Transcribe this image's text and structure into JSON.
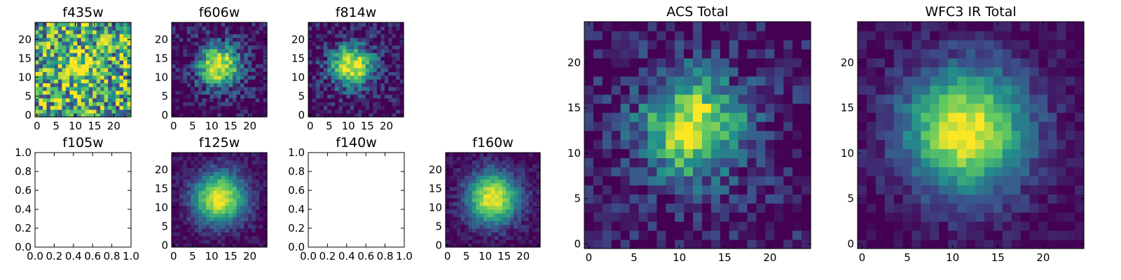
{
  "chart_data": [
    {
      "type": "heatmap",
      "title": "f435w",
      "colormap": "viridis",
      "grid": false,
      "xlim": [
        -0.5,
        24.5
      ],
      "ylim": [
        -0.5,
        24.5
      ],
      "xticks": [
        0,
        5,
        10,
        15,
        20
      ],
      "yticks": [
        0,
        5,
        10,
        15,
        20
      ],
      "xtick_labels": [
        "0",
        "5",
        "10",
        "15",
        "20"
      ],
      "ytick_labels": [
        "0",
        "5",
        "10",
        "15",
        "20"
      ],
      "image_size": [
        25,
        25
      ],
      "peak_center": [
        11,
        13
      ],
      "noise": "high",
      "empty": false
    },
    {
      "type": "heatmap",
      "title": "f606w",
      "colormap": "viridis",
      "grid": false,
      "xlim": [
        -0.5,
        24.5
      ],
      "ylim": [
        -0.5,
        24.5
      ],
      "xticks": [
        0,
        5,
        10,
        15,
        20
      ],
      "yticks": [
        0,
        5,
        10,
        15,
        20
      ],
      "xtick_labels": [
        "0",
        "5",
        "10",
        "15",
        "20"
      ],
      "ytick_labels": [
        "0",
        "5",
        "10",
        "15",
        "20"
      ],
      "image_size": [
        25,
        25
      ],
      "peak_center": [
        12,
        13
      ],
      "noise": "medium",
      "empty": false
    },
    {
      "type": "heatmap",
      "title": "f814w",
      "colormap": "viridis",
      "grid": false,
      "xlim": [
        -0.5,
        24.5
      ],
      "ylim": [
        -0.5,
        24.5
      ],
      "xticks": [
        0,
        5,
        10,
        15,
        20
      ],
      "yticks": [
        0,
        5,
        10,
        15,
        20
      ],
      "xtick_labels": [
        "0",
        "5",
        "10",
        "15",
        "20"
      ],
      "ytick_labels": [
        "0",
        "5",
        "10",
        "15",
        "20"
      ],
      "image_size": [
        25,
        25
      ],
      "peak_center": [
        11,
        13
      ],
      "noise": "medium",
      "empty": false
    },
    {
      "type": "heatmap",
      "title": "f105w",
      "grid": false,
      "xlim": [
        0,
        1
      ],
      "ylim": [
        0,
        1
      ],
      "xticks": [
        0,
        0.2,
        0.4,
        0.6,
        0.8,
        1.0
      ],
      "yticks": [
        0,
        0.2,
        0.4,
        0.6,
        0.8,
        1.0
      ],
      "xtick_labels": [
        "0.0",
        "0.2",
        "0.4",
        "0.6",
        "0.8",
        "1.0"
      ],
      "ytick_labels": [
        "0.0",
        "0.2",
        "0.4",
        "0.6",
        "0.8",
        "1.0"
      ],
      "empty": true
    },
    {
      "type": "heatmap",
      "title": "f125w",
      "colormap": "viridis",
      "grid": false,
      "xlim": [
        -0.5,
        24.5
      ],
      "ylim": [
        -0.5,
        24.5
      ],
      "xticks": [
        0,
        5,
        10,
        15,
        20
      ],
      "yticks": [
        0,
        5,
        10,
        15,
        20
      ],
      "xtick_labels": [
        "0",
        "5",
        "10",
        "15",
        "20"
      ],
      "ytick_labels": [
        "0",
        "5",
        "10",
        "15",
        "20"
      ],
      "image_size": [
        25,
        25
      ],
      "peak_center": [
        12,
        12.5
      ],
      "noise": "low",
      "empty": false
    },
    {
      "type": "heatmap",
      "title": "f140w",
      "grid": false,
      "xlim": [
        0,
        1
      ],
      "ylim": [
        0,
        1
      ],
      "xticks": [
        0,
        0.2,
        0.4,
        0.6,
        0.8,
        1.0
      ],
      "yticks": [
        0,
        0.2,
        0.4,
        0.6,
        0.8,
        1.0
      ],
      "xtick_labels": [
        "0.0",
        "0.2",
        "0.4",
        "0.6",
        "0.8",
        "1.0"
      ],
      "ytick_labels": [
        "0.0",
        "0.2",
        "0.4",
        "0.6",
        "0.8",
        "1.0"
      ],
      "empty": true
    },
    {
      "type": "heatmap",
      "title": "f160w",
      "colormap": "viridis",
      "grid": false,
      "xlim": [
        -0.5,
        24.5
      ],
      "ylim": [
        -0.5,
        24.5
      ],
      "xticks": [
        0,
        5,
        10,
        15,
        20
      ],
      "yticks": [
        0,
        5,
        10,
        15,
        20
      ],
      "xtick_labels": [
        "0",
        "5",
        "10",
        "15",
        "20"
      ],
      "ytick_labels": [
        "0",
        "5",
        "10",
        "15",
        "20"
      ],
      "image_size": [
        25,
        25
      ],
      "peak_center": [
        12,
        12.5
      ],
      "noise": "low",
      "empty": false
    },
    {
      "type": "heatmap",
      "title": "ACS Total",
      "colormap": "viridis",
      "grid": false,
      "xlim": [
        -0.5,
        24.5
      ],
      "ylim": [
        -0.5,
        24.5
      ],
      "xticks": [
        0,
        5,
        10,
        15,
        20
      ],
      "yticks": [
        0,
        5,
        10,
        15,
        20
      ],
      "xtick_labels": [
        "0",
        "5",
        "10",
        "15",
        "20"
      ],
      "ytick_labels": [
        "0",
        "5",
        "10",
        "15",
        "20"
      ],
      "image_size": [
        25,
        25
      ],
      "peak_center": [
        11.5,
        13
      ],
      "noise": "medium",
      "empty": false
    },
    {
      "type": "heatmap",
      "title": "WFC3 IR Total",
      "colormap": "viridis",
      "grid": false,
      "xlim": [
        -0.5,
        24.5
      ],
      "ylim": [
        -0.5,
        24.5
      ],
      "xticks": [
        0,
        5,
        10,
        15,
        20
      ],
      "yticks": [
        0,
        5,
        10,
        15,
        20
      ],
      "xtick_labels": [
        "0",
        "5",
        "10",
        "15",
        "20"
      ],
      "ytick_labels": [
        "0",
        "5",
        "10",
        "15",
        "20"
      ],
      "image_size": [
        25,
        25
      ],
      "peak_center": [
        11.5,
        12.5
      ],
      "noise": "low",
      "empty": false
    }
  ],
  "colors": {
    "viridis": [
      "#440154",
      "#3b528b",
      "#21918c",
      "#5ec962",
      "#fde725"
    ],
    "frame": "#000000",
    "background": "#ffffff"
  }
}
